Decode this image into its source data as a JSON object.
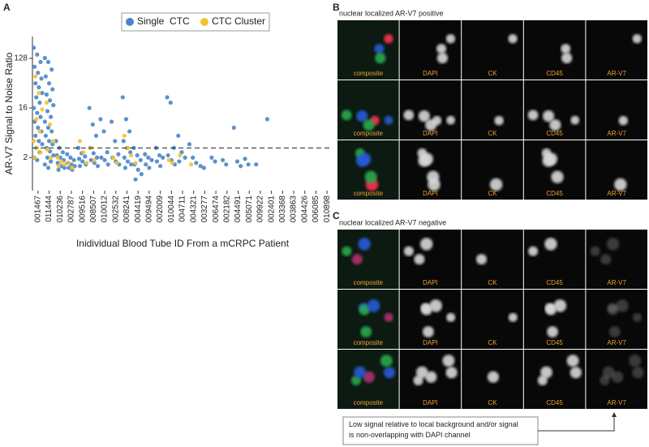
{
  "chart_data": {
    "type": "strip",
    "panel": "A",
    "y_label": "AR-V7 Signal to Noise Ratio",
    "x_label": "Inidividual Blood Tube ID From a mCRPC Patient",
    "categories": [
      "001467",
      "011444",
      "010236",
      "002787",
      "009516",
      "008507",
      "010012",
      "002532",
      "008241",
      "004419",
      "009494",
      "002009",
      "010044",
      "004711",
      "004321",
      "003277",
      "006474",
      "002182",
      "004491",
      "005071",
      "009922",
      "002401",
      "003368",
      "003863",
      "004426",
      "006085",
      "010898"
    ],
    "log_base": 2,
    "ylim": [
      0.5,
      320
    ],
    "yticks": [
      2,
      16,
      128
    ],
    "threshold": 3,
    "legend": "top",
    "series": [
      {
        "name": "Single  CTC",
        "color": "#4a86c8",
        "values": [
          [
            200,
            150,
            110,
            90,
            70,
            55,
            45,
            38,
            30,
            25,
            20,
            16,
            13,
            11,
            9,
            7,
            6,
            5,
            4,
            3.5,
            3,
            2.5,
            2,
            1.8
          ],
          [
            130,
            110,
            80,
            60,
            45,
            35,
            28,
            22,
            18,
            14,
            11,
            9,
            7,
            6,
            5,
            4,
            3.5,
            3,
            2.6,
            2.2,
            2,
            1.7,
            1.5,
            1.3
          ],
          [
            4,
            3,
            2.5,
            2.2,
            2,
            1.8,
            1.6,
            1.4,
            1.3,
            1.2
          ],
          [
            2.3,
            2,
            1.8,
            1.6,
            1.5,
            1.4,
            1.3,
            1.2
          ],
          [
            3,
            2.4,
            2.1,
            1.9,
            1.7,
            1.5,
            1.4
          ],
          [
            16,
            8,
            5,
            3,
            2.4,
            2,
            1.8,
            1.6,
            1.4
          ],
          [
            10,
            6,
            2.5,
            2,
            1.8,
            1.5
          ],
          [
            9,
            4,
            2.3,
            2,
            1.7,
            1.5
          ],
          [
            25,
            10,
            6,
            4,
            3,
            2.5,
            2,
            1.7,
            1.5,
            1.3
          ],
          [
            3,
            2.2,
            1.8,
            1.5,
            1.2,
            1,
            0.8
          ],
          [
            2.3,
            2,
            1.8,
            1.5,
            1.3
          ],
          [
            3,
            2.2,
            2,
            1.7,
            1.4
          ],
          [
            25,
            20,
            3,
            2.2,
            1.8,
            1.5
          ],
          [
            5,
            2.5,
            2,
            1.7
          ],
          [
            3.5,
            2,
            1.6
          ],
          [
            1.4,
            1.3
          ],
          [
            2,
            1.7
          ],
          [
            1.8,
            1.5
          ],
          [
            7,
            1.7,
            1.4
          ],
          [
            1.9,
            1.5
          ],
          [
            1.5
          ],
          [
            10
          ],
          [],
          [],
          [],
          [],
          []
        ]
      },
      {
        "name": "CTC Cluster",
        "color": "#f2c233",
        "values": [
          [
            60,
            30,
            15,
            10,
            6,
            4,
            3,
            2.5,
            2
          ],
          [
            20,
            8,
            4,
            2.8,
            2
          ],
          [
            2,
            1.7,
            1.5,
            1.4
          ],
          [
            1.6,
            1.3
          ],
          [
            4,
            2.5,
            1.6
          ],
          [
            3,
            1.8
          ],
          [],
          [
            2,
            1.6
          ],
          [
            5,
            3,
            2.2
          ],
          [
            1.6
          ],
          [],
          [],
          [
            1.8,
            1.6
          ],
          [
            2.2
          ],
          [
            1.5
          ],
          [],
          [],
          [],
          [],
          [],
          [],
          [],
          [],
          [],
          [],
          [],
          []
        ]
      }
    ]
  },
  "panels": [
    {
      "letter": "B",
      "title": "nuclear localized AR-V7 positive"
    },
    {
      "letter": "C",
      "title": "nuclear localized AR-V7 negative"
    }
  ],
  "channels": [
    "composite",
    "DAPI",
    "CK",
    "CD45",
    "AR-V7"
  ],
  "note": "Low signal relative to local background and/or signal is non-overlapping with DAPI channel"
}
